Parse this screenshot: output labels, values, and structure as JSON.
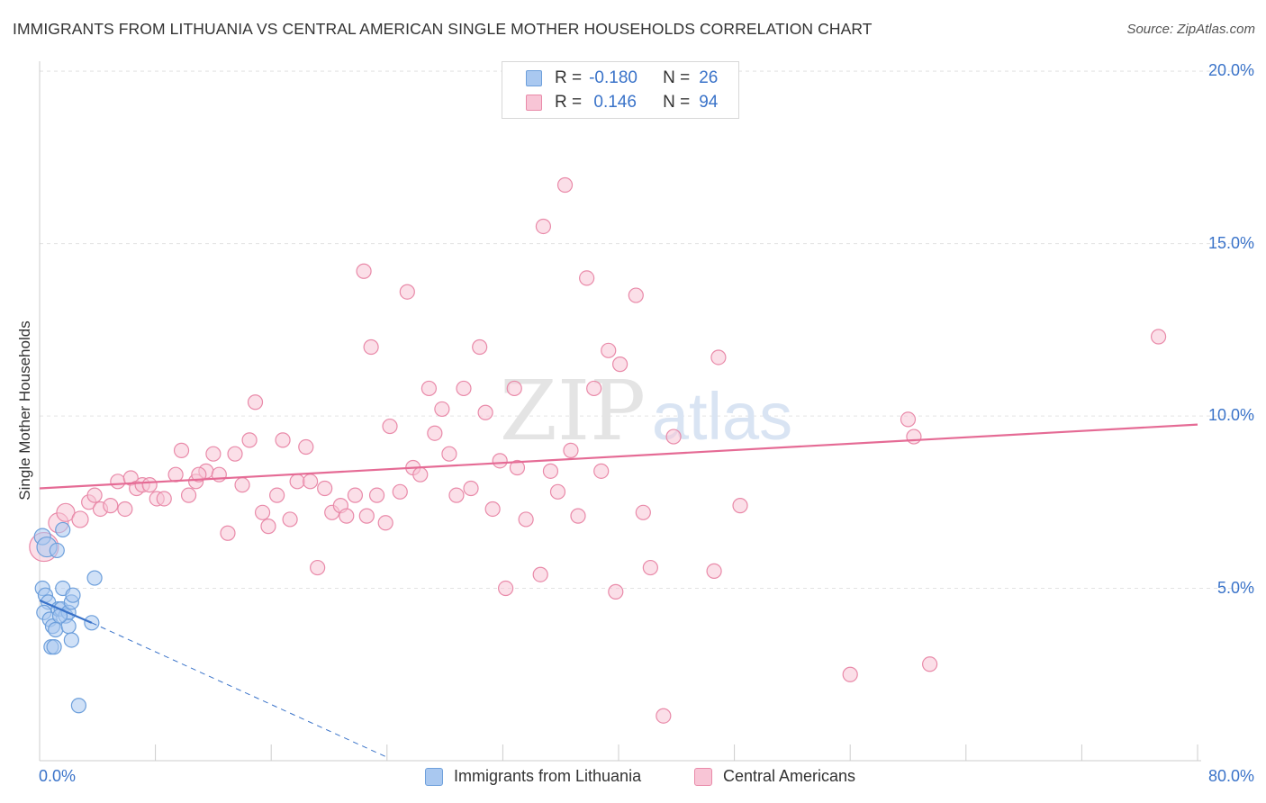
{
  "header": {
    "title": "IMMIGRANTS FROM LITHUANIA VS CENTRAL AMERICAN SINGLE MOTHER HOUSEHOLDS CORRELATION CHART",
    "source": "Source: ZipAtlas.com"
  },
  "watermark": {
    "part1": "ZIP",
    "part2": "atlas"
  },
  "legend": {
    "rows": [
      {
        "r_label": "R =",
        "r_value": "-0.180",
        "n_label": "N =",
        "n_value": "26",
        "color": "#a9c8f0",
        "border": "#6d9fdb"
      },
      {
        "r_label": "R =",
        "r_value": " 0.146",
        "n_label": "N =",
        "n_value": "94",
        "color": "#f8c5d6",
        "border": "#e98aa9"
      }
    ]
  },
  "bottom_legend": {
    "series_a": "Immigrants from Lithuania",
    "series_b": "Central Americans"
  },
  "chart_data": {
    "type": "scatter",
    "title": "IMMIGRANTS FROM LITHUANIA VS CENTRAL AMERICAN SINGLE MOTHER HOUSEHOLDS CORRELATION CHART",
    "xlabel": "",
    "ylabel": "Single Mother Households",
    "xlim": [
      0,
      80
    ],
    "ylim": [
      0,
      20.5
    ],
    "x_tick_labels": [
      "0.0%",
      "80.0%"
    ],
    "y_ticks": [
      5,
      10,
      15,
      20
    ],
    "y_tick_labels": [
      "5.0%",
      "10.0%",
      "15.0%",
      "20.0%"
    ],
    "grid": "horizontal dashed",
    "legend_position": "top-center",
    "series": [
      {
        "name": "Immigrants from Lithuania",
        "color": "#a9c8f0",
        "stroke": "#6d9fdb",
        "line_color": "#3a73c9",
        "trend": {
          "solid": [
            [
              0,
              4.65
            ],
            [
              3.6,
              4.0
            ]
          ],
          "dashed": [
            [
              3.6,
              4.0
            ],
            [
              24.0,
              0.1
            ]
          ]
        },
        "points": [
          [
            0.2,
            6.5,
            9
          ],
          [
            0.5,
            6.2,
            11
          ],
          [
            1.2,
            6.1,
            8
          ],
          [
            1.6,
            6.7,
            8
          ],
          [
            0.2,
            5.0,
            8
          ],
          [
            0.4,
            4.8,
            8
          ],
          [
            0.6,
            4.6,
            8
          ],
          [
            0.3,
            4.3,
            8
          ],
          [
            0.7,
            4.1,
            8
          ],
          [
            0.9,
            3.9,
            8
          ],
          [
            1.1,
            3.8,
            8
          ],
          [
            1.3,
            4.4,
            8
          ],
          [
            1.5,
            4.4,
            8
          ],
          [
            1.6,
            5.0,
            8
          ],
          [
            1.8,
            4.2,
            8
          ],
          [
            2.0,
            4.3,
            8
          ],
          [
            2.2,
            4.6,
            8
          ],
          [
            2.3,
            4.8,
            8
          ],
          [
            2.0,
            3.9,
            8
          ],
          [
            2.2,
            3.5,
            8
          ],
          [
            0.8,
            3.3,
            8
          ],
          [
            1.0,
            3.3,
            8
          ],
          [
            3.6,
            4.0,
            8
          ],
          [
            3.8,
            5.3,
            8
          ],
          [
            2.7,
            1.6,
            8
          ],
          [
            1.4,
            4.2,
            8
          ]
        ]
      },
      {
        "name": "Central Americans",
        "color": "#f8c5d6",
        "stroke": "#e98aa9",
        "line_color": "#e56b95",
        "trend": {
          "solid": [
            [
              0,
              7.9
            ],
            [
              80,
              9.75
            ]
          ]
        },
        "points": [
          [
            0.3,
            6.2,
            16
          ],
          [
            1.3,
            6.9,
            11
          ],
          [
            1.8,
            7.2,
            10
          ],
          [
            2.8,
            7.0,
            9
          ],
          [
            3.4,
            7.5,
            8
          ],
          [
            3.8,
            7.7,
            8
          ],
          [
            4.2,
            7.3,
            8
          ],
          [
            4.9,
            7.4,
            8
          ],
          [
            5.4,
            8.1,
            8
          ],
          [
            5.9,
            7.3,
            8
          ],
          [
            6.3,
            8.2,
            8
          ],
          [
            6.7,
            7.9,
            8
          ],
          [
            7.1,
            8.0,
            8
          ],
          [
            7.6,
            8.0,
            8
          ],
          [
            8.1,
            7.6,
            8
          ],
          [
            8.6,
            7.6,
            8
          ],
          [
            9.4,
            8.3,
            8
          ],
          [
            9.8,
            9.0,
            8
          ],
          [
            10.3,
            7.7,
            8
          ],
          [
            10.8,
            8.1,
            8
          ],
          [
            11.5,
            8.4,
            8
          ],
          [
            12.0,
            8.9,
            8
          ],
          [
            12.4,
            8.3,
            8
          ],
          [
            13.0,
            6.6,
            8
          ],
          [
            13.5,
            8.9,
            8
          ],
          [
            14.0,
            8.0,
            8
          ],
          [
            14.5,
            9.3,
            8
          ],
          [
            14.9,
            10.4,
            8
          ],
          [
            15.4,
            7.2,
            8
          ],
          [
            15.8,
            6.8,
            8
          ],
          [
            16.4,
            7.7,
            8
          ],
          [
            16.8,
            9.3,
            8
          ],
          [
            17.3,
            7.0,
            8
          ],
          [
            17.8,
            8.1,
            8
          ],
          [
            18.4,
            9.1,
            8
          ],
          [
            18.7,
            8.1,
            8
          ],
          [
            19.2,
            5.6,
            8
          ],
          [
            19.7,
            7.9,
            8
          ],
          [
            20.2,
            7.2,
            8
          ],
          [
            20.8,
            7.4,
            8
          ],
          [
            21.2,
            7.1,
            8
          ],
          [
            21.8,
            7.7,
            8
          ],
          [
            22.4,
            14.2,
            8
          ],
          [
            22.9,
            12.0,
            8
          ],
          [
            23.3,
            7.7,
            8
          ],
          [
            23.9,
            6.9,
            8
          ],
          [
            24.2,
            9.7,
            8
          ],
          [
            24.9,
            7.8,
            8
          ],
          [
            25.4,
            13.6,
            8
          ],
          [
            25.8,
            8.5,
            8
          ],
          [
            26.3,
            8.3,
            8
          ],
          [
            26.9,
            10.8,
            8
          ],
          [
            27.3,
            9.5,
            8
          ],
          [
            27.8,
            10.2,
            8
          ],
          [
            28.3,
            8.9,
            8
          ],
          [
            28.8,
            7.7,
            8
          ],
          [
            29.3,
            10.8,
            8
          ],
          [
            29.8,
            7.9,
            8
          ],
          [
            30.4,
            12.0,
            8
          ],
          [
            30.8,
            10.1,
            8
          ],
          [
            31.3,
            7.3,
            8
          ],
          [
            31.8,
            8.7,
            8
          ],
          [
            32.2,
            5.0,
            8
          ],
          [
            32.8,
            10.8,
            8
          ],
          [
            33.0,
            8.5,
            8
          ],
          [
            33.6,
            7.0,
            8
          ],
          [
            34.6,
            5.4,
            8
          ],
          [
            34.8,
            15.5,
            8
          ],
          [
            35.3,
            8.4,
            8
          ],
          [
            35.8,
            7.8,
            8
          ],
          [
            36.3,
            16.7,
            8
          ],
          [
            36.7,
            9.0,
            8
          ],
          [
            37.2,
            7.1,
            8
          ],
          [
            37.8,
            14.0,
            8
          ],
          [
            38.3,
            10.8,
            8
          ],
          [
            38.8,
            8.4,
            8
          ],
          [
            39.3,
            11.9,
            8
          ],
          [
            39.8,
            4.9,
            8
          ],
          [
            40.1,
            11.5,
            8
          ],
          [
            41.2,
            13.5,
            8
          ],
          [
            41.7,
            7.2,
            8
          ],
          [
            42.2,
            5.6,
            8
          ],
          [
            43.1,
            1.3,
            8
          ],
          [
            43.8,
            9.4,
            8
          ],
          [
            46.6,
            5.5,
            8
          ],
          [
            46.9,
            11.7,
            8
          ],
          [
            48.4,
            7.4,
            8
          ],
          [
            56.0,
            2.5,
            8
          ],
          [
            60.0,
            9.9,
            8
          ],
          [
            60.4,
            9.4,
            8
          ],
          [
            61.5,
            2.8,
            8
          ],
          [
            77.3,
            12.3,
            8
          ],
          [
            22.6,
            7.1,
            8
          ],
          [
            11.0,
            8.3,
            8
          ]
        ]
      }
    ]
  }
}
